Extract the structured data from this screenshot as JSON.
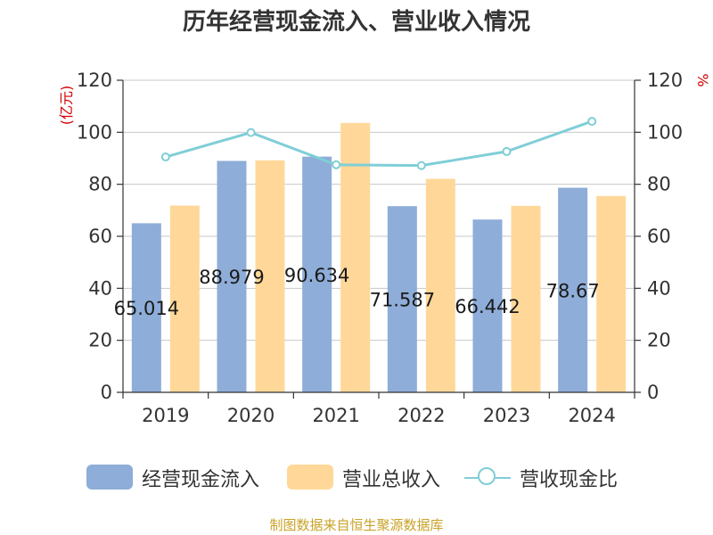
{
  "chart_data": {
    "type": "bar",
    "title": "历年经营现金流入、营业收入情况",
    "categories": [
      "2019",
      "2020",
      "2021",
      "2022",
      "2023",
      "2024"
    ],
    "left_axis": {
      "label": "(亿元)",
      "range": [
        0,
        120
      ],
      "ticks": [
        "0",
        "20",
        "40",
        "60",
        "80",
        "100",
        "120"
      ]
    },
    "right_axis": {
      "label": "%",
      "range": [
        0,
        120
      ],
      "ticks": [
        "0",
        "20",
        "40",
        "60",
        "80",
        "100",
        "120"
      ]
    },
    "grid": true,
    "legend_position": "bottom",
    "series": [
      {
        "name": "经营现金流入",
        "type": "bar",
        "axis": "left",
        "color": "#8eadd8",
        "values": [
          65.014,
          88.979,
          90.634,
          71.587,
          66.442,
          78.67
        ],
        "data_labels": [
          "65.014",
          "88.979",
          "90.634",
          "71.587",
          "66.442",
          "78.67"
        ]
      },
      {
        "name": "营业总收入",
        "type": "bar",
        "axis": "left",
        "color": "#ffd899",
        "values": [
          71.8,
          89.2,
          103.6,
          82.1,
          71.7,
          75.5
        ]
      },
      {
        "name": "营收现金比",
        "type": "line",
        "axis": "right",
        "color": "#80ced7",
        "values": [
          90.5,
          99.9,
          87.5,
          87.2,
          92.6,
          104.2
        ]
      }
    ]
  },
  "footer": {
    "source": "制图数据来自恒生聚源数据库"
  }
}
